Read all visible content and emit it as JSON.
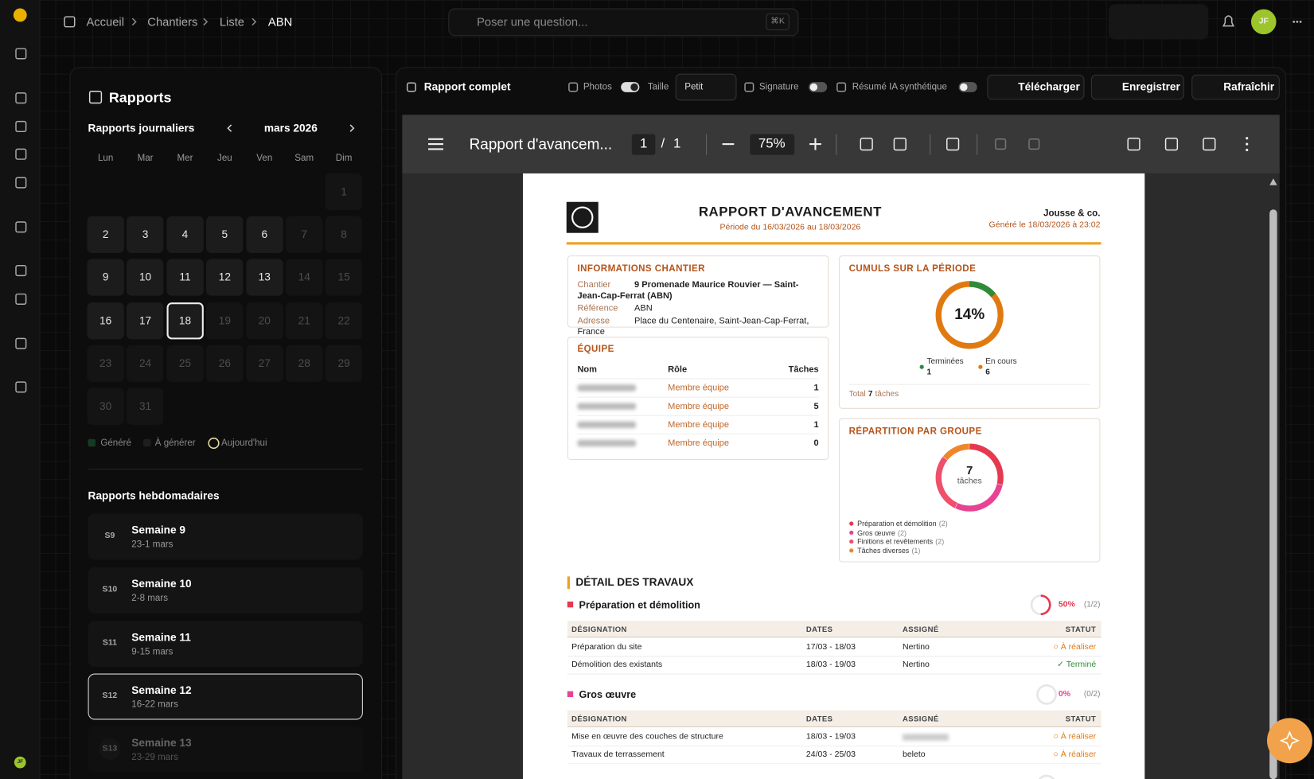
{
  "topbar": {
    "breadcrumb": [
      "Accueil",
      "Chantiers",
      "Liste",
      "ABN"
    ],
    "search": "Poser une question...",
    "shortcut": "⌘K",
    "avatar": "JF"
  },
  "rail": {
    "avatar": "JF"
  },
  "reports": {
    "title": "Rapports",
    "daily_title": "Rapports journaliers",
    "month": "mars 2026",
    "weekdays": [
      "Lun",
      "Mar",
      "Mer",
      "Jeu",
      "Ven",
      "Sam",
      "Dim"
    ],
    "days": [
      1,
      2,
      3,
      4,
      5,
      6,
      7,
      8,
      9,
      10,
      11,
      12,
      13,
      14,
      15,
      16,
      17,
      18,
      19,
      20,
      21,
      22,
      23,
      24,
      25,
      26,
      27,
      28,
      29,
      30,
      31
    ],
    "legend": [
      "Généré",
      "À générer",
      "Aujourd'hui"
    ],
    "weekly_title": "Rapports hebdomadaires",
    "weeks": [
      {
        "badge": "S9",
        "name": "Semaine 9",
        "range": "23-1 mars"
      },
      {
        "badge": "S10",
        "name": "Semaine 10",
        "range": "2-8 mars"
      },
      {
        "badge": "S11",
        "name": "Semaine 11",
        "range": "9-15 mars"
      },
      {
        "badge": "S12",
        "name": "Semaine 12",
        "range": "16-22 mars"
      },
      {
        "badge": "S13",
        "name": "Semaine 13",
        "range": "23-29 mars"
      }
    ]
  },
  "toolbar": {
    "title": "Rapport complet",
    "photos": "Photos",
    "size_label": "Taille",
    "size": "Petit",
    "signature": "Signature",
    "ai_summary": "Résumé IA synthétique",
    "download": "Télécharger",
    "save": "Enregistrer",
    "refresh": "Rafraîchir"
  },
  "viewer": {
    "title": "Rapport d'avancem...",
    "page": 1,
    "separator": "/",
    "pages": 1,
    "zoom": "75%"
  },
  "document": {
    "title": "RAPPORT D'AVANCEMENT",
    "period": "Période du 16/03/2026 au 18/03/2026",
    "company": "Jousse & co.",
    "generated": "Généré le 18/03/2026 à 23:02",
    "info": {
      "heading": "INFORMATIONS CHANTIER",
      "rows": [
        [
          "Chantier",
          "9 Promenade Maurice Rouvier — Saint-Jean-Cap-Ferrat (ABN)"
        ],
        [
          "Référence",
          "ABN"
        ],
        [
          "Adresse",
          "Place du Centenaire, Saint-Jean-Cap-Ferrat, France"
        ]
      ]
    },
    "team": {
      "heading": "ÉQUIPE",
      "columns": [
        "Nom",
        "Rôle",
        "Tâches"
      ],
      "rows": [
        {
          "role": "Membre équipe",
          "tasks": 1
        },
        {
          "role": "Membre équipe",
          "tasks": 5
        },
        {
          "role": "Membre équipe",
          "tasks": 1
        },
        {
          "role": "Membre équipe",
          "tasks": 0
        }
      ]
    },
    "summary": {
      "heading": "CUMULS SUR LA PÉRIODE",
      "percent": {
        "value": 14,
        "label": "14%"
      },
      "legend": [
        {
          "name": "Terminées",
          "value": 1,
          "color": "#2e8b3a"
        },
        {
          "name": "En cours",
          "value": 6,
          "color": "#e07a10"
        }
      ],
      "total_label": "Total",
      "total": 7,
      "total_unit": "tâches"
    },
    "groups_chart": {
      "heading": "RÉPARTITION PAR GROUPE",
      "total": 7,
      "unit": "tâches",
      "groups": [
        {
          "name": "Préparation et démolition",
          "color": "#e5394f",
          "count": {
            "value": 2,
            "label": "(2)"
          }
        },
        {
          "name": "Gros œuvre",
          "color": "#e84393",
          "count": {
            "value": 2,
            "label": "(2)"
          }
        },
        {
          "name": "Finitions et revêtements",
          "color": "#ef4f6a",
          "count": {
            "value": 2,
            "label": "(2)"
          }
        },
        {
          "name": "Tâches diverses",
          "color": "#f0862a",
          "count": {
            "value": 1,
            "label": "(1)"
          }
        }
      ]
    },
    "detail": {
      "heading": "DÉTAIL DES TRAVAUX",
      "columns": [
        "DÉSIGNATION",
        "DATES",
        "ASSIGNÉ",
        "STATUT"
      ],
      "groups": [
        {
          "name": "Préparation et démolition",
          "color": "#e5394f",
          "progress": {
            "value": 50,
            "label": "50%"
          },
          "ratio": "(1/2)",
          "rows": [
            {
              "designation": "Préparation du site",
              "dates": "17/03 - 18/03",
              "assignee": "Nertino",
              "status": "○ À réaliser"
            },
            {
              "designation": "Démolition des existants",
              "dates": "18/03 - 19/03",
              "assignee": "Nertino",
              "status": "✓ Terminé"
            }
          ]
        },
        {
          "name": "Gros œuvre",
          "color": "#e84393",
          "progress": {
            "value": 0,
            "label": "0%"
          },
          "ratio": "(0/2)",
          "rows": [
            {
              "designation": "Mise en œuvre des couches de structure",
              "dates": "18/03 - 19/03",
              "status": "○ À réaliser"
            },
            {
              "designation": "Travaux de terrassement",
              "dates": "24/03 - 25/03",
              "assignee": "beleto",
              "status": "○ À réaliser"
            }
          ]
        }
      ]
    }
  }
}
